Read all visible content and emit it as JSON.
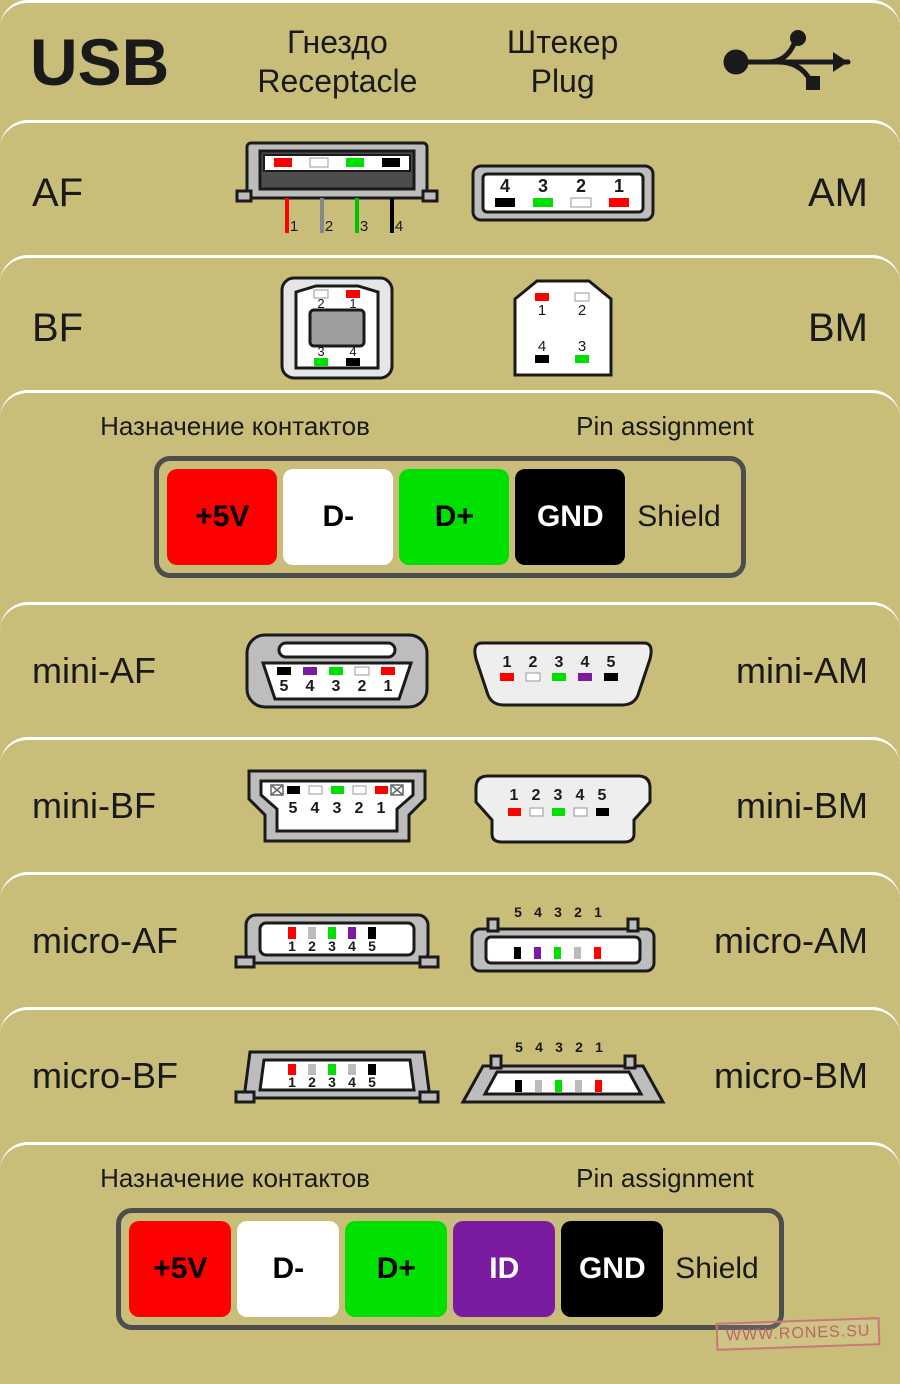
{
  "colors": {
    "bg": "#c9be79",
    "divider": "#ffffff",
    "stroke": "#1a1a1a",
    "bodyGray": "#bdbdbd",
    "bodyLight": "#e6e6e6",
    "metal": "#9e9e9e",
    "pin_5v": "#ff0000",
    "pin_dminus": "#ffffff",
    "pin_dplus": "#00e000",
    "pin_gnd": "#000000",
    "pin_id": "#7a1ba0",
    "shield": "#c9be79"
  },
  "header": {
    "title": "USB",
    "col_receptacle_ru": "Гнездо",
    "col_receptacle_en": "Receptacle",
    "col_plug_ru": "Штекер",
    "col_plug_en": "Plug"
  },
  "rows": {
    "a": {
      "left": "AF",
      "right": "AM"
    },
    "b": {
      "left": "BF",
      "right": "BM"
    },
    "miniA": {
      "left": "mini-AF",
      "right": "mini-AM"
    },
    "miniB": {
      "left": "mini-BF",
      "right": "mini-BM"
    },
    "microA": {
      "left": "micro-AF",
      "right": "micro-AM"
    },
    "microB": {
      "left": "micro-BF",
      "right": "micro-BM"
    }
  },
  "legend": {
    "title_ru": "Назначение контактов",
    "title_en": "Pin assignment",
    "shield": "Shield",
    "pins4": [
      {
        "label": "+5V",
        "bg": "#ff0000",
        "fg": "#000000"
      },
      {
        "label": "D-",
        "bg": "#ffffff",
        "fg": "#000000"
      },
      {
        "label": "D+",
        "bg": "#00e000",
        "fg": "#000000"
      },
      {
        "label": "GND",
        "bg": "#000000",
        "fg": "#ffffff"
      }
    ],
    "pins5": [
      {
        "label": "+5V",
        "bg": "#ff0000",
        "fg": "#000000"
      },
      {
        "label": "D-",
        "bg": "#ffffff",
        "fg": "#000000"
      },
      {
        "label": "D+",
        "bg": "#00e000",
        "fg": "#000000"
      },
      {
        "label": "ID",
        "bg": "#7a1ba0",
        "fg": "#ffffff"
      },
      {
        "label": "GND",
        "bg": "#000000",
        "fg": "#ffffff"
      }
    ]
  },
  "pinLabels": {
    "af": [
      "1",
      "2",
      "3",
      "4"
    ],
    "am": [
      "4",
      "3",
      "2",
      "1"
    ],
    "bf": {
      "top": [
        "2",
        "1"
      ],
      "bot": [
        "3",
        "4"
      ]
    },
    "bm": {
      "top": [
        "1",
        "2"
      ],
      "bot": [
        "4",
        "3"
      ]
    },
    "mini_f": [
      "5",
      "4",
      "3",
      "2",
      "1"
    ],
    "mini_m": [
      "1",
      "2",
      "3",
      "4",
      "5"
    ],
    "micro_f": [
      "1",
      "2",
      "3",
      "4",
      "5"
    ],
    "micro_m": [
      "5",
      "4",
      "3",
      "2",
      "1"
    ]
  },
  "footer": "WWW.RONES.SU"
}
